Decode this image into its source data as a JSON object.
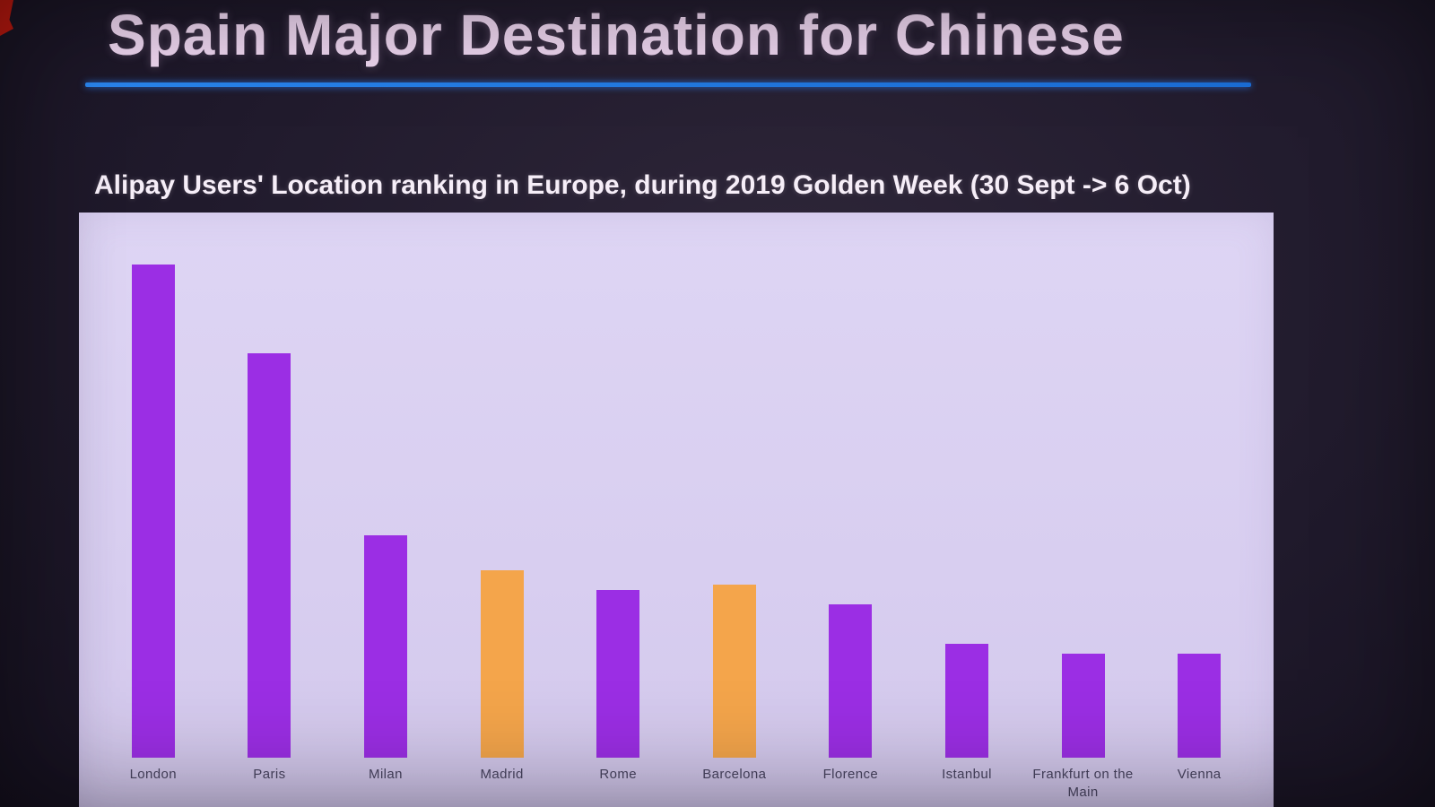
{
  "slide": {
    "title": "Spain Major Destination for Chinese",
    "subtitle": "Alipay Users' Location ranking in Europe, during 2019 Golden Week (30 Sept -> 6 Oct)"
  },
  "chart_data": {
    "type": "bar",
    "title": "Alipay Users' Location ranking in Europe, during 2019 Golden Week (30 Sept -> 6 Oct)",
    "categories": [
      "London",
      "Paris",
      "Milan",
      "Madrid",
      "Rome",
      "Barcelona",
      "Florence",
      "Istanbul",
      "Frankfurt on the Main",
      "Vienna"
    ],
    "values": [
      100,
      82,
      45,
      38,
      34,
      35,
      31,
      23,
      21,
      21
    ],
    "units": "relative ranking (no y-axis shown)",
    "highlight_categories": [
      "Madrid",
      "Barcelona"
    ],
    "highlight_indices": [
      3,
      5
    ],
    "bar_color": "#9b2ee4",
    "highlight_color": "#f4a54b",
    "plot_background": "#d9cff1",
    "xlabel": "",
    "ylabel": "",
    "ylim": [
      0,
      110
    ],
    "grid": false,
    "legend": false
  },
  "colors": {
    "background": "#201a2c",
    "title_text": "#f0d8f2",
    "underline_blue": "#1f7ce8",
    "subtitle_text": "#f6eef8",
    "label_text": "#4a4562",
    "corner_artifact_red": "#c51a10"
  }
}
